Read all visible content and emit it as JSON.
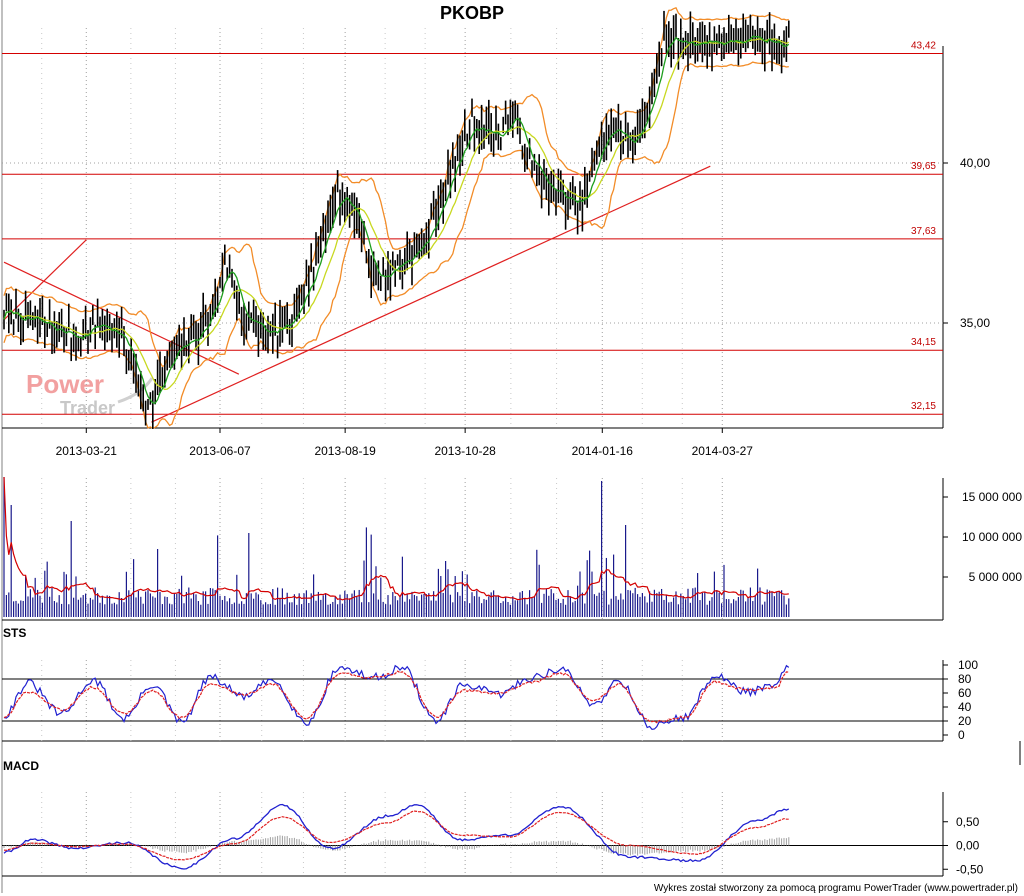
{
  "title": "PKOBP",
  "watermark": {
    "line1": "Power",
    "line2": "Trader"
  },
  "footer": "Wykres został stworzony za pomocą programu PowerTrader (www.powertrader.pl)",
  "colors": {
    "background": "#ffffff",
    "price_bar": "#000000",
    "bollinger": "#f28c28",
    "ma_fast": "#1e9e1e",
    "ma_slow": "#c8d820",
    "level_line": "#d40000",
    "trend_line": "#e02020",
    "volume_bar": "#1a1a8c",
    "volume_avg": "#d40000",
    "stoch_k": "#2020d0",
    "stoch_d": "#e02020",
    "macd_line": "#2020d0",
    "signal_line": "#e02020",
    "histogram": "#a0a0a0",
    "grid": "#a0a0a0"
  },
  "chart_data": [
    {
      "type": "candlestick",
      "panel": "price",
      "title": "PKOBP",
      "x_tick_labels": [
        "2013-03-21",
        "2013-06-07",
        "2013-08-19",
        "2013-10-28",
        "2014-01-16",
        "2014-03-27"
      ],
      "y_tick_labels": [
        "35,00",
        "40,00"
      ],
      "ylim": [
        31.9,
        44.6
      ],
      "levels": [
        {
          "value": 43.42,
          "label": "43,42"
        },
        {
          "value": 39.65,
          "label": "39,65"
        },
        {
          "value": 37.63,
          "label": "37,63"
        },
        {
          "value": 34.15,
          "label": "34,15"
        },
        {
          "value": 32.15,
          "label": "32,15"
        }
      ],
      "trend_lines": [
        {
          "from": [
            "2013-02-01",
            36.9
          ],
          "to": [
            "2013-06-18",
            33.4
          ]
        },
        {
          "from": [
            "2013-02-01",
            35.1
          ],
          "to": [
            "2013-03-21",
            37.6
          ]
        },
        {
          "from": [
            "2013-04-28",
            31.9
          ],
          "to": [
            "2014-03-20",
            39.9
          ]
        }
      ],
      "indicators": [
        "Bollinger Bands",
        "Moving average (fast)",
        "Moving average (slow)"
      ],
      "close_anchors": [
        [
          "2013-02-01",
          35.3
        ],
        [
          "2013-02-15",
          35.1
        ],
        [
          "2013-03-01",
          34.8
        ],
        [
          "2013-03-15",
          34.6
        ],
        [
          "2013-03-29",
          35.0
        ],
        [
          "2013-04-12",
          34.4
        ],
        [
          "2013-04-26",
          32.3
        ],
        [
          "2013-05-10",
          34.0
        ],
        [
          "2013-05-24",
          34.6
        ],
        [
          "2013-06-03",
          35.5
        ],
        [
          "2013-06-10",
          37.0
        ],
        [
          "2013-06-20",
          35.2
        ],
        [
          "2013-07-05",
          34.6
        ],
        [
          "2013-07-19",
          35.0
        ],
        [
          "2013-08-02",
          36.8
        ],
        [
          "2013-08-13",
          39.2
        ],
        [
          "2013-08-27",
          38.2
        ],
        [
          "2013-09-05",
          36.3
        ],
        [
          "2013-09-20",
          36.9
        ],
        [
          "2013-10-04",
          37.5
        ],
        [
          "2013-10-18",
          39.5
        ],
        [
          "2013-11-01",
          41.3
        ],
        [
          "2013-11-15",
          40.8
        ],
        [
          "2013-11-25",
          41.5
        ],
        [
          "2013-12-06",
          39.8
        ],
        [
          "2013-12-20",
          39.0
        ],
        [
          "2014-01-03",
          38.6
        ],
        [
          "2014-01-10",
          39.8
        ],
        [
          "2014-01-20",
          41.2
        ],
        [
          "2014-02-03",
          40.5
        ],
        [
          "2014-02-10",
          41.6
        ],
        [
          "2014-02-21",
          43.8
        ]
      ]
    },
    {
      "type": "bar",
      "panel": "volume",
      "y_tick_labels": [
        "5 000 000",
        "10 000 000",
        "15 000 000"
      ],
      "ylim": [
        0,
        17500000
      ],
      "indicators": [
        "Volume moving average"
      ],
      "spikes": [
        [
          "2013-02-01",
          17500000
        ],
        [
          "2013-02-05",
          14000000
        ],
        [
          "2013-03-12",
          12000000
        ],
        [
          "2013-05-01",
          8500000
        ],
        [
          "2013-06-05",
          10200000
        ],
        [
          "2013-06-24",
          10500000
        ],
        [
          "2013-09-01",
          11200000
        ],
        [
          "2013-09-03",
          10300000
        ],
        [
          "2013-10-16",
          7000000
        ],
        [
          "2013-12-09",
          8400000
        ],
        [
          "2014-01-08",
          8300000
        ],
        [
          "2014-01-16",
          17000000
        ],
        [
          "2014-01-30",
          11500000
        ]
      ]
    },
    {
      "type": "line",
      "panel": "oscillator",
      "label": "STS",
      "y_tick_labels": [
        "0",
        "20",
        "40",
        "60",
        "80",
        "100"
      ],
      "ylim": [
        0,
        100
      ],
      "reference_lines": [
        20,
        80
      ],
      "series": [
        {
          "color": "#2020d0",
          "values": [
            [
              0,
              28
            ],
            [
              10,
              74
            ],
            [
              24,
              30
            ],
            [
              37,
              78
            ],
            [
              50,
              24
            ],
            [
              62,
              72
            ],
            [
              74,
              18
            ],
            [
              86,
              82
            ],
            [
              100,
              55
            ],
            [
              112,
              78
            ],
            [
              126,
              18
            ],
            [
              140,
              96
            ],
            [
              154,
              82
            ],
            [
              166,
              96
            ],
            [
              180,
              20
            ],
            [
              192,
              72
            ],
            [
              206,
              58
            ],
            [
              220,
              82
            ],
            [
              232,
              94
            ],
            [
              246,
              44
            ],
            [
              256,
              78
            ],
            [
              270,
              12
            ],
            [
              284,
              26
            ],
            [
              296,
              84
            ],
            [
              310,
              62
            ],
            [
              322,
              70
            ],
            [
              326,
              98
            ]
          ]
        },
        {
          "color": "#e02020",
          "values": [
            [
              0,
              25
            ],
            [
              10,
              62
            ],
            [
              24,
              36
            ],
            [
              37,
              68
            ],
            [
              50,
              30
            ],
            [
              62,
              64
            ],
            [
              74,
              24
            ],
            [
              86,
              72
            ],
            [
              100,
              58
            ],
            [
              112,
              72
            ],
            [
              126,
              24
            ],
            [
              140,
              88
            ],
            [
              154,
              82
            ],
            [
              166,
              90
            ],
            [
              180,
              26
            ],
            [
              192,
              64
            ],
            [
              206,
              60
            ],
            [
              220,
              76
            ],
            [
              232,
              88
            ],
            [
              246,
              50
            ],
            [
              256,
              72
            ],
            [
              270,
              18
            ],
            [
              284,
              26
            ],
            [
              296,
              76
            ],
            [
              310,
              64
            ],
            [
              322,
              68
            ],
            [
              326,
              90
            ]
          ]
        }
      ]
    },
    {
      "type": "line",
      "panel": "oscillator",
      "label": "MACD",
      "y_tick_labels": [
        "-0,50",
        "0,00",
        "0,50"
      ],
      "ylim": [
        -0.6,
        1.0
      ],
      "reference_lines": [
        0
      ],
      "series": [
        {
          "color": "#2020d0",
          "values": [
            [
              0,
              -0.15
            ],
            [
              12,
              0.12
            ],
            [
              30,
              -0.06
            ],
            [
              50,
              0.06
            ],
            [
              74,
              -0.48
            ],
            [
              96,
              0.14
            ],
            [
              116,
              0.84
            ],
            [
              136,
              -0.06
            ],
            [
              160,
              0.62
            ],
            [
              172,
              0.86
            ],
            [
              190,
              0.12
            ],
            [
              210,
              0.22
            ],
            [
              232,
              0.82
            ],
            [
              260,
              -0.24
            ],
            [
              288,
              -0.32
            ],
            [
              314,
              0.52
            ],
            [
              326,
              0.76
            ]
          ]
        },
        {
          "color": "#e02020",
          "values": [
            [
              0,
              -0.1
            ],
            [
              12,
              0.05
            ],
            [
              30,
              -0.02
            ],
            [
              50,
              0.03
            ],
            [
              74,
              -0.3
            ],
            [
              96,
              0.04
            ],
            [
              116,
              0.6
            ],
            [
              136,
              0.06
            ],
            [
              160,
              0.48
            ],
            [
              172,
              0.72
            ],
            [
              190,
              0.22
            ],
            [
              210,
              0.18
            ],
            [
              232,
              0.7
            ],
            [
              260,
              0.0
            ],
            [
              288,
              -0.18
            ],
            [
              314,
              0.38
            ],
            [
              326,
              0.56
            ]
          ]
        }
      ]
    }
  ]
}
